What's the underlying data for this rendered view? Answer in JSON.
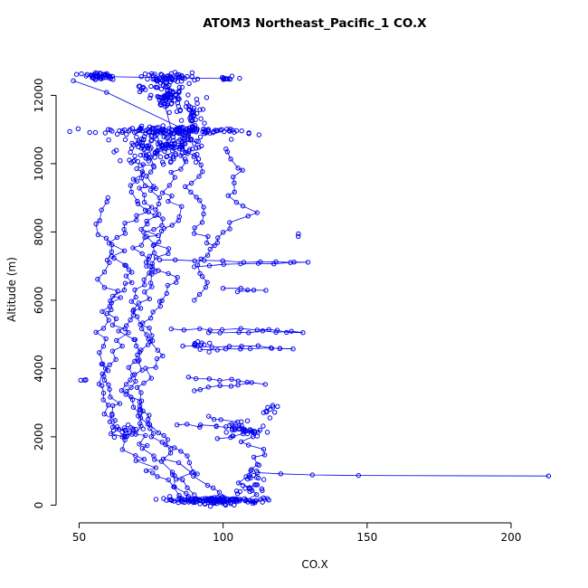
{
  "chart_data": {
    "type": "scatter",
    "title": "ATOM3 Northeast_Pacific_1 CO.X",
    "xlabel": "CO.X",
    "ylabel": "Altitude (m)",
    "xlim": [
      42,
      222
    ],
    "ylim": [
      -520,
      13150
    ],
    "x_ticks": [
      50,
      100,
      150,
      200
    ],
    "y_ticks": [
      0,
      2000,
      4000,
      6000,
      8000,
      10000,
      12000
    ],
    "color": "#0000ee",
    "marker": "open-circle",
    "seed": 1337,
    "clusters": [
      {
        "cx": 57,
        "cy": 12550,
        "sx": 3.5,
        "sy": 60,
        "n": 45
      },
      {
        "cx": 80,
        "cy": 12520,
        "sx": 5,
        "sy": 80,
        "n": 55
      },
      {
        "cx": 101,
        "cy": 12490,
        "sx": 2.5,
        "sy": 40,
        "n": 10
      },
      {
        "cx": 73,
        "cy": 12200,
        "sx": 2,
        "sy": 60,
        "n": 8
      },
      {
        "cx": 81,
        "cy": 11950,
        "sx": 2.5,
        "sy": 210,
        "n": 70
      },
      {
        "cx": 90,
        "cy": 11400,
        "sx": 1.8,
        "sy": 260,
        "n": 35
      },
      {
        "cx": 81,
        "cy": 10960,
        "sx": 13,
        "sy": 55,
        "n": 130
      },
      {
        "cx": 80,
        "cy": 10480,
        "sx": 8,
        "sy": 260,
        "n": 140
      },
      {
        "cx": 96,
        "cy": 130,
        "sx": 9,
        "sy": 50,
        "n": 115
      },
      {
        "cx": 107,
        "cy": 2250,
        "sx": 4,
        "sy": 120,
        "n": 25
      },
      {
        "cx": 111,
        "cy": 650,
        "sx": 3,
        "sy": 240,
        "n": 25
      },
      {
        "cx": 53,
        "cy": 3650,
        "sx": 1.5,
        "sy": 80,
        "n": 4
      },
      {
        "cx": 66,
        "cy": 2200,
        "sx": 3,
        "sy": 140,
        "n": 18
      },
      {
        "cx": 116,
        "cy": 2800,
        "sx": 2,
        "sy": 90,
        "n": 10
      },
      {
        "cx": 93,
        "cy": 4700,
        "sx": 2,
        "sy": 80,
        "n": 10
      },
      {
        "cx": 126,
        "cy": 7930,
        "sx": 1,
        "sy": 30,
        "n": 2
      }
    ],
    "paths": [
      {
        "wp": [
          [
            57,
            12550
          ],
          [
            80,
            12520
          ],
          [
            101,
            12490
          ]
        ],
        "spacing": 999,
        "jx": 0,
        "jy": 0
      },
      {
        "wp": [
          [
            48,
            12430
          ],
          [
            60,
            12120
          ],
          [
            85,
            11060
          ]
        ],
        "spacing": 60,
        "jx": 0.5,
        "jy": 30
      },
      {
        "wp": [
          [
            79,
            12430
          ],
          [
            80,
            12260
          ]
        ],
        "spacing": 60,
        "jx": 0.5,
        "jy": 30
      },
      {
        "wp": [
          [
            80,
            12250
          ],
          [
            81,
            11650
          ],
          [
            82,
            11000
          ]
        ],
        "spacing": 25,
        "jx": 1,
        "jy": 60
      },
      {
        "wp": [
          [
            82,
            10900
          ],
          [
            75,
            10050
          ],
          [
            68,
            9300
          ],
          [
            73,
            8600
          ],
          [
            64,
            8000
          ],
          [
            62,
            7300
          ],
          [
            70,
            6800
          ],
          [
            63,
            6200
          ],
          [
            60,
            5600
          ],
          [
            65,
            5000
          ],
          [
            62,
            4300
          ],
          [
            58,
            3700
          ],
          [
            63,
            3000
          ],
          [
            60,
            2400
          ],
          [
            66,
            2000
          ],
          [
            70,
            1500
          ],
          [
            79,
            800
          ],
          [
            85,
            250
          ],
          [
            90,
            120
          ]
        ],
        "spacing": 7,
        "jx": 1.4,
        "jy": 45
      },
      {
        "wp": [
          [
            88,
            10850
          ],
          [
            85,
            10000
          ],
          [
            80,
            9200
          ],
          [
            85,
            8500
          ],
          [
            78,
            7800
          ],
          [
            75,
            7100
          ],
          [
            82,
            6500
          ],
          [
            76,
            5800
          ],
          [
            72,
            5100
          ],
          [
            78,
            4400
          ],
          [
            74,
            3800
          ],
          [
            70,
            3100
          ],
          [
            75,
            2500
          ],
          [
            80,
            1900
          ],
          [
            88,
            1200
          ],
          [
            95,
            500
          ],
          [
            100,
            160
          ]
        ],
        "spacing": 7,
        "jx": 1.4,
        "jy": 45
      },
      {
        "wp": [
          [
            101,
            10430
          ],
          [
            106,
            9800
          ],
          [
            102,
            9200
          ],
          [
            108,
            8600
          ],
          [
            100,
            8000
          ],
          [
            96,
            7500
          ],
          [
            91,
            7000
          ],
          [
            95,
            6500
          ],
          [
            90,
            6000
          ]
        ],
        "spacing": 8,
        "jx": 1.2,
        "jy": 40
      },
      {
        "wp": [
          [
            78,
            7180
          ],
          [
            112,
            7130
          ],
          [
            130,
            7110
          ],
          [
            100,
            7050
          ],
          [
            90,
            6980
          ]
        ],
        "spacing": 18,
        "jx": 0.8,
        "jy": 20
      },
      {
        "wp": [
          [
            82,
            5160
          ],
          [
            110,
            5120
          ],
          [
            128,
            5100
          ],
          [
            95,
            5050
          ]
        ],
        "spacing": 16,
        "jx": 0.8,
        "jy": 20
      },
      {
        "wp": [
          [
            86,
            4660
          ],
          [
            112,
            4620
          ],
          [
            125,
            4600
          ],
          [
            92,
            4560
          ]
        ],
        "spacing": 16,
        "jx": 0.8,
        "jy": 20
      },
      {
        "wp": [
          [
            95,
            2600
          ],
          [
            104,
            2350
          ],
          [
            112,
            2150
          ],
          [
            108,
            1850
          ],
          [
            114,
            1550
          ],
          [
            110,
            1050
          ],
          [
            106,
            650
          ],
          [
            110,
            300
          ],
          [
            108,
            150
          ]
        ],
        "spacing": 8,
        "jx": 1.2,
        "jy": 35
      },
      {
        "wp": [
          [
            82,
            160
          ],
          [
            95,
            140
          ],
          [
            108,
            130
          ],
          [
            115,
            155
          ],
          [
            104,
            115
          ]
        ],
        "spacing": 6,
        "jx": 1.5,
        "jy": 25
      },
      {
        "wp": [
          [
            112,
            950
          ],
          [
            120,
            915
          ],
          [
            131,
            885
          ],
          [
            147,
            868
          ],
          [
            213,
            852
          ]
        ],
        "spacing": 400,
        "jx": 0,
        "jy": 0
      },
      {
        "wp": [
          [
            70,
            9850
          ],
          [
            78,
            9000
          ],
          [
            72,
            8200
          ],
          [
            80,
            7400
          ],
          [
            73,
            6600
          ],
          [
            68,
            5800
          ],
          [
            75,
            5000
          ],
          [
            70,
            4200
          ],
          [
            65,
            3400
          ],
          [
            72,
            2600
          ],
          [
            78,
            1800
          ],
          [
            85,
            1000
          ],
          [
            90,
            300
          ]
        ],
        "spacing": 7,
        "jx": 1.4,
        "jy": 45
      },
      {
        "wp": [
          [
            88,
            3750
          ],
          [
            103,
            3650
          ],
          [
            113,
            3550
          ],
          [
            96,
            3450
          ],
          [
            90,
            3350
          ]
        ],
        "spacing": 12,
        "jx": 1,
        "jy": 25
      },
      {
        "wp": [
          [
            84,
            2350
          ],
          [
            100,
            2280
          ],
          [
            112,
            2180
          ],
          [
            108,
            2050
          ],
          [
            98,
            1950
          ]
        ],
        "spacing": 10,
        "jx": 1,
        "jy": 25
      },
      {
        "wp": [
          [
            60,
            9000
          ],
          [
            57,
            8200
          ],
          [
            62,
            7400
          ],
          [
            58,
            6600
          ],
          [
            61,
            5800
          ],
          [
            57,
            5000
          ],
          [
            60,
            4300
          ],
          [
            56,
            3600
          ],
          [
            59,
            2900
          ],
          [
            62,
            2300
          ],
          [
            65,
            2000
          ]
        ],
        "spacing": 8,
        "jx": 1.2,
        "jy": 40
      },
      {
        "wp": [
          [
            76,
            9900
          ],
          [
            72,
            9100
          ],
          [
            78,
            8300
          ],
          [
            70,
            7500
          ],
          [
            76,
            6700
          ],
          [
            71,
            5900
          ],
          [
            66,
            5100
          ],
          [
            71,
            4300
          ],
          [
            67,
            3500
          ],
          [
            73,
            2700
          ],
          [
            70,
            2100
          ],
          [
            75,
            1600
          ],
          [
            82,
            900
          ],
          [
            88,
            250
          ]
        ],
        "spacing": 7,
        "jx": 1.4,
        "jy": 45
      },
      {
        "wp": [
          [
            85,
            10700
          ],
          [
            92,
            10000
          ],
          [
            88,
            9300
          ],
          [
            95,
            8700
          ],
          [
            90,
            8100
          ],
          [
            97,
            7600
          ]
        ],
        "spacing": 8,
        "jx": 1.2,
        "jy": 40
      },
      {
        "wp": [
          [
            100,
            6350
          ],
          [
            115,
            6300
          ],
          [
            105,
            6250
          ]
        ],
        "spacing": 14,
        "jx": 0.8,
        "jy": 20
      }
    ]
  }
}
